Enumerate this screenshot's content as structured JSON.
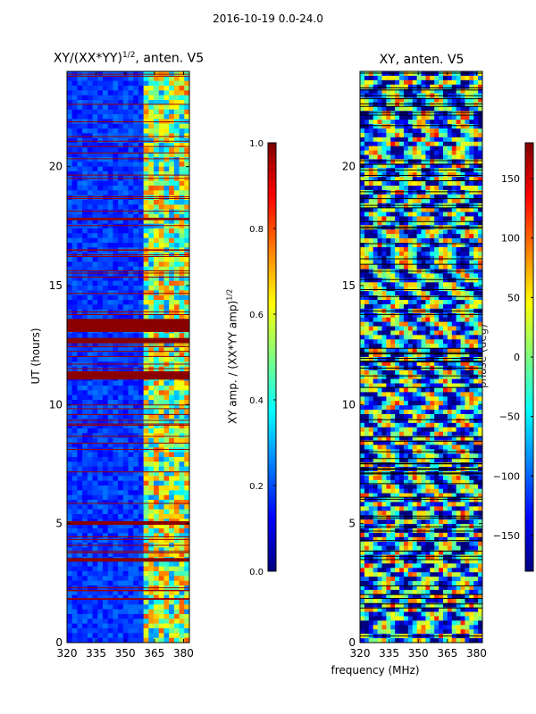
{
  "figure": {
    "suptitle": "2016-10-19 0.0-24.0",
    "xlabel": "frequency (MHz)"
  },
  "chart_data": [
    {
      "type": "heatmap",
      "title_main": "XY/(XX*YY)",
      "title_sup": "1/2",
      "title_rest": ", anten. V5",
      "xlabel": "",
      "ylabel": "UT (hours)",
      "x_ticks": [
        320,
        335,
        350,
        365,
        380
      ],
      "x_tick_labels": [
        "320",
        "335",
        "350",
        "365",
        "380"
      ],
      "xlim": [
        320,
        383
      ],
      "y_ticks": [
        0,
        5,
        10,
        15,
        20
      ],
      "y_tick_labels": [
        "0",
        "5",
        "10",
        "15",
        "20"
      ],
      "ylim": [
        0,
        24
      ],
      "colorbar": {
        "label_main": "XY amp. / (XX*YY amp)",
        "label_sup": "1/2",
        "range": [
          0.0,
          1.0
        ],
        "ticks": [
          0.0,
          0.2,
          0.4,
          0.6,
          0.8,
          1.0
        ],
        "tick_labels": [
          "0.0",
          "0.2",
          "0.4",
          "0.6",
          "0.8",
          "1.0"
        ]
      }
    },
    {
      "type": "heatmap",
      "title_main": "XY, anten. V5",
      "xlabel": "frequency (MHz)",
      "ylabel": "",
      "x_ticks": [
        320,
        335,
        350,
        365,
        380
      ],
      "x_tick_labels": [
        "320",
        "335",
        "350",
        "365",
        "380"
      ],
      "xlim": [
        320,
        383
      ],
      "y_ticks": [
        0,
        5,
        10,
        15,
        20
      ],
      "y_tick_labels": [
        "0",
        "5",
        "10",
        "15",
        "20"
      ],
      "ylim": [
        0,
        24
      ],
      "colorbar": {
        "label_main": "phase (deg)",
        "range": [
          -180,
          180
        ],
        "ticks": [
          -150,
          -100,
          -50,
          0,
          50,
          100,
          150
        ],
        "tick_labels": [
          "−150",
          "−100",
          "−50",
          "0",
          "50",
          "100",
          "150"
        ]
      }
    }
  ],
  "colors": {
    "jet": [
      "#00007f",
      "#0000ff",
      "#007fff",
      "#00ffff",
      "#7fff7f",
      "#ffff00",
      "#ff7f00",
      "#ff0000",
      "#7f0000"
    ]
  }
}
